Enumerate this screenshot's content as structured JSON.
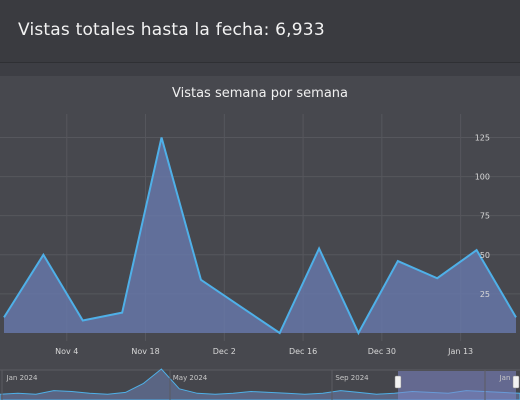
{
  "header": {
    "title": "Vistas totales hasta la fecha: 6,933"
  },
  "chart_data": {
    "type": "area",
    "title": "Vistas semana por semana",
    "x": [
      "Oct 21",
      "Oct 28",
      "Nov 4",
      "Nov 11",
      "Nov 18",
      "Nov 25",
      "Dec 2",
      "Dec 9",
      "Dec 16",
      "Dec 23",
      "Dec 30",
      "Jan 6",
      "Jan 13",
      "Jan 20"
    ],
    "values": [
      10,
      50,
      8,
      13,
      125,
      34,
      17,
      0,
      54,
      0,
      46,
      35,
      53,
      10
    ],
    "x_tick_labels": [
      "Nov 4",
      "Nov 18",
      "Dec 2",
      "Dec 16",
      "Dec 30",
      "Jan 13"
    ],
    "y_ticks": [
      25,
      50,
      75,
      100,
      125
    ],
    "ylim": [
      0,
      140
    ],
    "grid": true,
    "colors": {
      "line": "#4fb0e8",
      "fill": "#6677a8"
    },
    "navigator": {
      "tick_labels": [
        "Jan 2024",
        "May 2024",
        "Sep 2024",
        "Jan"
      ]
    }
  }
}
